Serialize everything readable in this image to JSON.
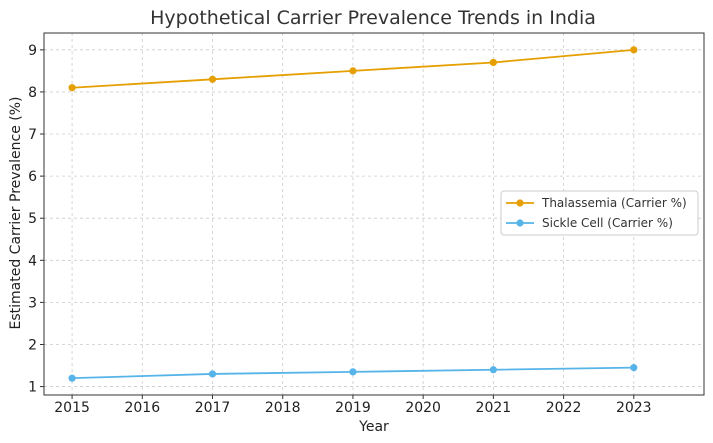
{
  "chart_data": {
    "type": "line",
    "title": "Hypothetical Carrier Prevalence Trends in India",
    "xlabel": "Year",
    "ylabel": "Estimated Carrier Prevalence (%)",
    "x": [
      2015,
      2017,
      2019,
      2021,
      2023
    ],
    "xticks": [
      "2015",
      "2016",
      "2017",
      "2018",
      "2019",
      "2020",
      "2021",
      "2022",
      "2023"
    ],
    "yticks": [
      "1",
      "2",
      "3",
      "4",
      "5",
      "6",
      "7",
      "8",
      "9"
    ],
    "xlim": [
      2014.6,
      2024.0
    ],
    "ylim": [
      0.8,
      9.4
    ],
    "grid": true,
    "legend_position": "center-right",
    "series": [
      {
        "name": "Thalassemia (Carrier %)",
        "color": "#E69F00",
        "values": [
          8.1,
          8.3,
          8.5,
          8.7,
          9.0
        ]
      },
      {
        "name": "Sickle Cell (Carrier %)",
        "color": "#56B4E9",
        "values": [
          1.2,
          1.3,
          1.35,
          1.4,
          1.45
        ]
      }
    ]
  }
}
